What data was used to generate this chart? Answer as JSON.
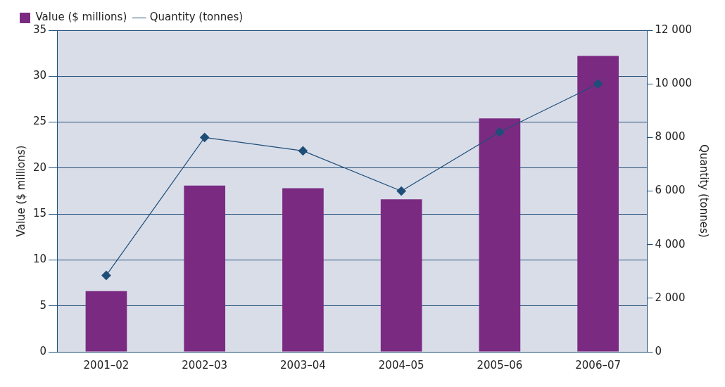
{
  "chart_data": {
    "type": "bar",
    "categories": [
      "2001–02",
      "2002–03",
      "2003–04",
      "2004–05",
      "2005–06",
      "2006–07"
    ],
    "series": [
      {
        "name": "Value ($ millions)",
        "color": "#7b2a82",
        "values": [
          6.6,
          18.1,
          17.8,
          16.6,
          25.4,
          32.2
        ]
      },
      {
        "name": "Quantity (tonnes)",
        "type": "line",
        "axis": "y2",
        "color": "#1f4e79",
        "marker": "diamond",
        "values": [
          2850,
          8000,
          7500,
          6000,
          8200,
          10000
        ]
      }
    ],
    "ylabel": "Value ($ millions)",
    "y2label": "Quantity (tonnes)",
    "ylim": [
      0,
      35
    ],
    "yticks": [
      0,
      5,
      10,
      15,
      20,
      25,
      30,
      35
    ],
    "y2lim": [
      0,
      12000
    ],
    "y2ticks": [
      {
        "value": 0,
        "label": "0"
      },
      {
        "value": 2000,
        "label": "2 000"
      },
      {
        "value": 4000,
        "label": "4 000"
      },
      {
        "value": 6000,
        "label": "6 000"
      },
      {
        "value": 8000,
        "label": "8 000"
      },
      {
        "value": 10000,
        "label": "10 000"
      },
      {
        "value": 12000,
        "label": "12 000"
      }
    ],
    "grid": "y",
    "legend": "top left"
  }
}
